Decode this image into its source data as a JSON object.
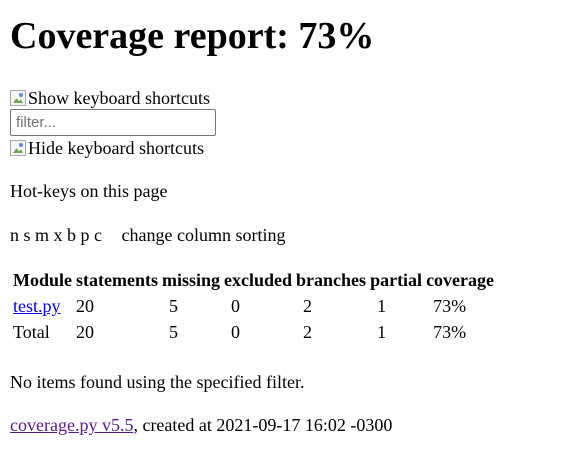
{
  "header": {
    "title": "Coverage report: 73%"
  },
  "keyboard": {
    "show_alt": "Show keyboard shortcuts",
    "hide_alt": "Hide keyboard shortcuts"
  },
  "filter": {
    "placeholder": "filter...",
    "value": ""
  },
  "hotkeys": {
    "title": "Hot-keys on this page",
    "keys": "n s m x b p c",
    "description": "change column sorting"
  },
  "table": {
    "columns": [
      "Module",
      "statements",
      "missing",
      "excluded",
      "branches",
      "partial",
      "coverage"
    ],
    "rows": [
      {
        "module": "test.py",
        "statements": "20",
        "missing": "5",
        "excluded": "0",
        "branches": "2",
        "partial": "1",
        "coverage": "73%"
      }
    ],
    "total": {
      "label": "Total",
      "statements": "20",
      "missing": "5",
      "excluded": "0",
      "branches": "2",
      "partial": "1",
      "coverage": "73%"
    }
  },
  "no_items": "No items found using the specified filter.",
  "footer": {
    "link_text": "coverage.py v5.5",
    "created_text": ", created at 2021-09-17 16:02 -0300"
  }
}
